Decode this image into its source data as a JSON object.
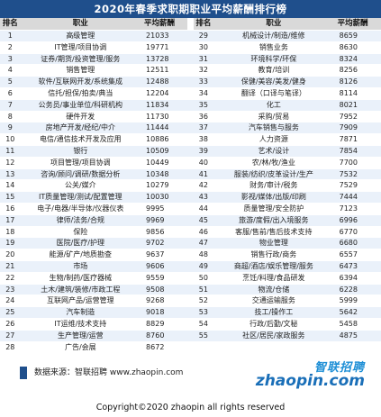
{
  "title": "2020年春季求职期职业平均薪酬排行榜",
  "headers": {
    "rank": "排名",
    "job": "职业",
    "salary": "平均薪酬"
  },
  "rows": [
    {
      "r1": "1",
      "j1": "高级管理",
      "s1": "21033",
      "r2": "29",
      "j2": "机械设计/制造/维修",
      "s2": "8659"
    },
    {
      "r1": "2",
      "j1": "IT管理/项目协调",
      "s1": "19771",
      "r2": "30",
      "j2": "销售业务",
      "s2": "8630"
    },
    {
      "r1": "3",
      "j1": "证券/期货/投资管理/服务",
      "s1": "13728",
      "r2": "31",
      "j2": "环境科学/环保",
      "s2": "8324"
    },
    {
      "r1": "4",
      "j1": "销售管理",
      "s1": "12511",
      "r2": "32",
      "j2": "教育/培训",
      "s2": "8256"
    },
    {
      "r1": "5",
      "j1": "软件/互联网开发/系统集成",
      "s1": "12488",
      "r2": "33",
      "j2": "保健/美容/美发/健身",
      "s2": "8126"
    },
    {
      "r1": "6",
      "j1": "信托/担保/拍卖/典当",
      "s1": "12204",
      "r2": "34",
      "j2": "翻译（口译与笔译）",
      "s2": "8114"
    },
    {
      "r1": "7",
      "j1": "公务员/事业单位/科研机构",
      "s1": "11834",
      "r2": "35",
      "j2": "化工",
      "s2": "8021"
    },
    {
      "r1": "8",
      "j1": "硬件开发",
      "s1": "11730",
      "r2": "36",
      "j2": "采购/贸易",
      "s2": "7952"
    },
    {
      "r1": "9",
      "j1": "房地产开发/经纪/中介",
      "s1": "11444",
      "r2": "37",
      "j2": "汽车销售与服务",
      "s2": "7909"
    },
    {
      "r1": "10",
      "j1": "电信/通信技术开发及应用",
      "s1": "10886",
      "r2": "38",
      "j2": "人力资源",
      "s2": "7871"
    },
    {
      "r1": "11",
      "j1": "银行",
      "s1": "10509",
      "r2": "39",
      "j2": "艺术/设计",
      "s2": "7854"
    },
    {
      "r1": "12",
      "j1": "项目管理/项目协调",
      "s1": "10449",
      "r2": "40",
      "j2": "农/林/牧/渔业",
      "s2": "7700"
    },
    {
      "r1": "13",
      "j1": "咨询/顾问/调研/数据分析",
      "s1": "10348",
      "r2": "41",
      "j2": "服装/纺织/皮革设计/生产",
      "s2": "7532"
    },
    {
      "r1": "14",
      "j1": "公关/媒介",
      "s1": "10279",
      "r2": "42",
      "j2": "财务/审计/税务",
      "s2": "7529"
    },
    {
      "r1": "15",
      "j1": "IT质量管理/测试/配置管理",
      "s1": "10030",
      "r2": "43",
      "j2": "影视/媒体/出版/印刷",
      "s2": "7444"
    },
    {
      "r1": "16",
      "j1": "电子/电器/半导体/仪器仪表",
      "s1": "9995",
      "r2": "44",
      "j2": "质量管理/安全防护",
      "s2": "7123"
    },
    {
      "r1": "17",
      "j1": "律师/法务/合规",
      "s1": "9969",
      "r2": "45",
      "j2": "旅游/度假/出入境服务",
      "s2": "6996"
    },
    {
      "r1": "18",
      "j1": "保险",
      "s1": "9856",
      "r2": "46",
      "j2": "客服/售前/售后技术支持",
      "s2": "6770"
    },
    {
      "r1": "19",
      "j1": "医院/医疗/护理",
      "s1": "9702",
      "r2": "47",
      "j2": "物业管理",
      "s2": "6680"
    },
    {
      "r1": "20",
      "j1": "能源/矿产/地质勘查",
      "s1": "9637",
      "r2": "48",
      "j2": "销售行政/商务",
      "s2": "6557"
    },
    {
      "r1": "21",
      "j1": "市场",
      "s1": "9606",
      "r2": "49",
      "j2": "商超/酒店/娱乐管理/服务",
      "s2": "6473"
    },
    {
      "r1": "22",
      "j1": "生物/制药/医疗器械",
      "s1": "9559",
      "r2": "50",
      "j2": "烹饪/料理/食品研发",
      "s2": "6394"
    },
    {
      "r1": "23",
      "j1": "土木/建筑/装修/市政工程",
      "s1": "9508",
      "r2": "51",
      "j2": "物流/仓储",
      "s2": "6228"
    },
    {
      "r1": "24",
      "j1": "互联网产品/运营管理",
      "s1": "9268",
      "r2": "52",
      "j2": "交通运输服务",
      "s2": "5999"
    },
    {
      "r1": "25",
      "j1": "汽车制造",
      "s1": "9018",
      "r2": "53",
      "j2": "技工/操作工",
      "s2": "5642"
    },
    {
      "r1": "26",
      "j1": "IT运维/技术支持",
      "s1": "8829",
      "r2": "54",
      "j2": "行政/后勤/文秘",
      "s2": "5458"
    },
    {
      "r1": "27",
      "j1": "生产管理/运营",
      "s1": "8760",
      "r2": "55",
      "j2": "社区/居民/家政服务",
      "s2": "4875"
    },
    {
      "r1": "28",
      "j1": "广告/会展",
      "s1": "8672",
      "r2": "",
      "j2": "",
      "s2": ""
    }
  ],
  "source": "数据来源：智联招聘 www.zhaopin.com",
  "logo": {
    "cn": "智联招聘",
    "en": "zhaopin.com"
  },
  "copyright": "Copyright©2020 zhaopin all rights reserved",
  "colors": {
    "title_bg": "#1f4f8c",
    "row_alt": "#eaf1fa",
    "header_bg": "#d9d9d9",
    "logo": "#1a6fb8"
  }
}
